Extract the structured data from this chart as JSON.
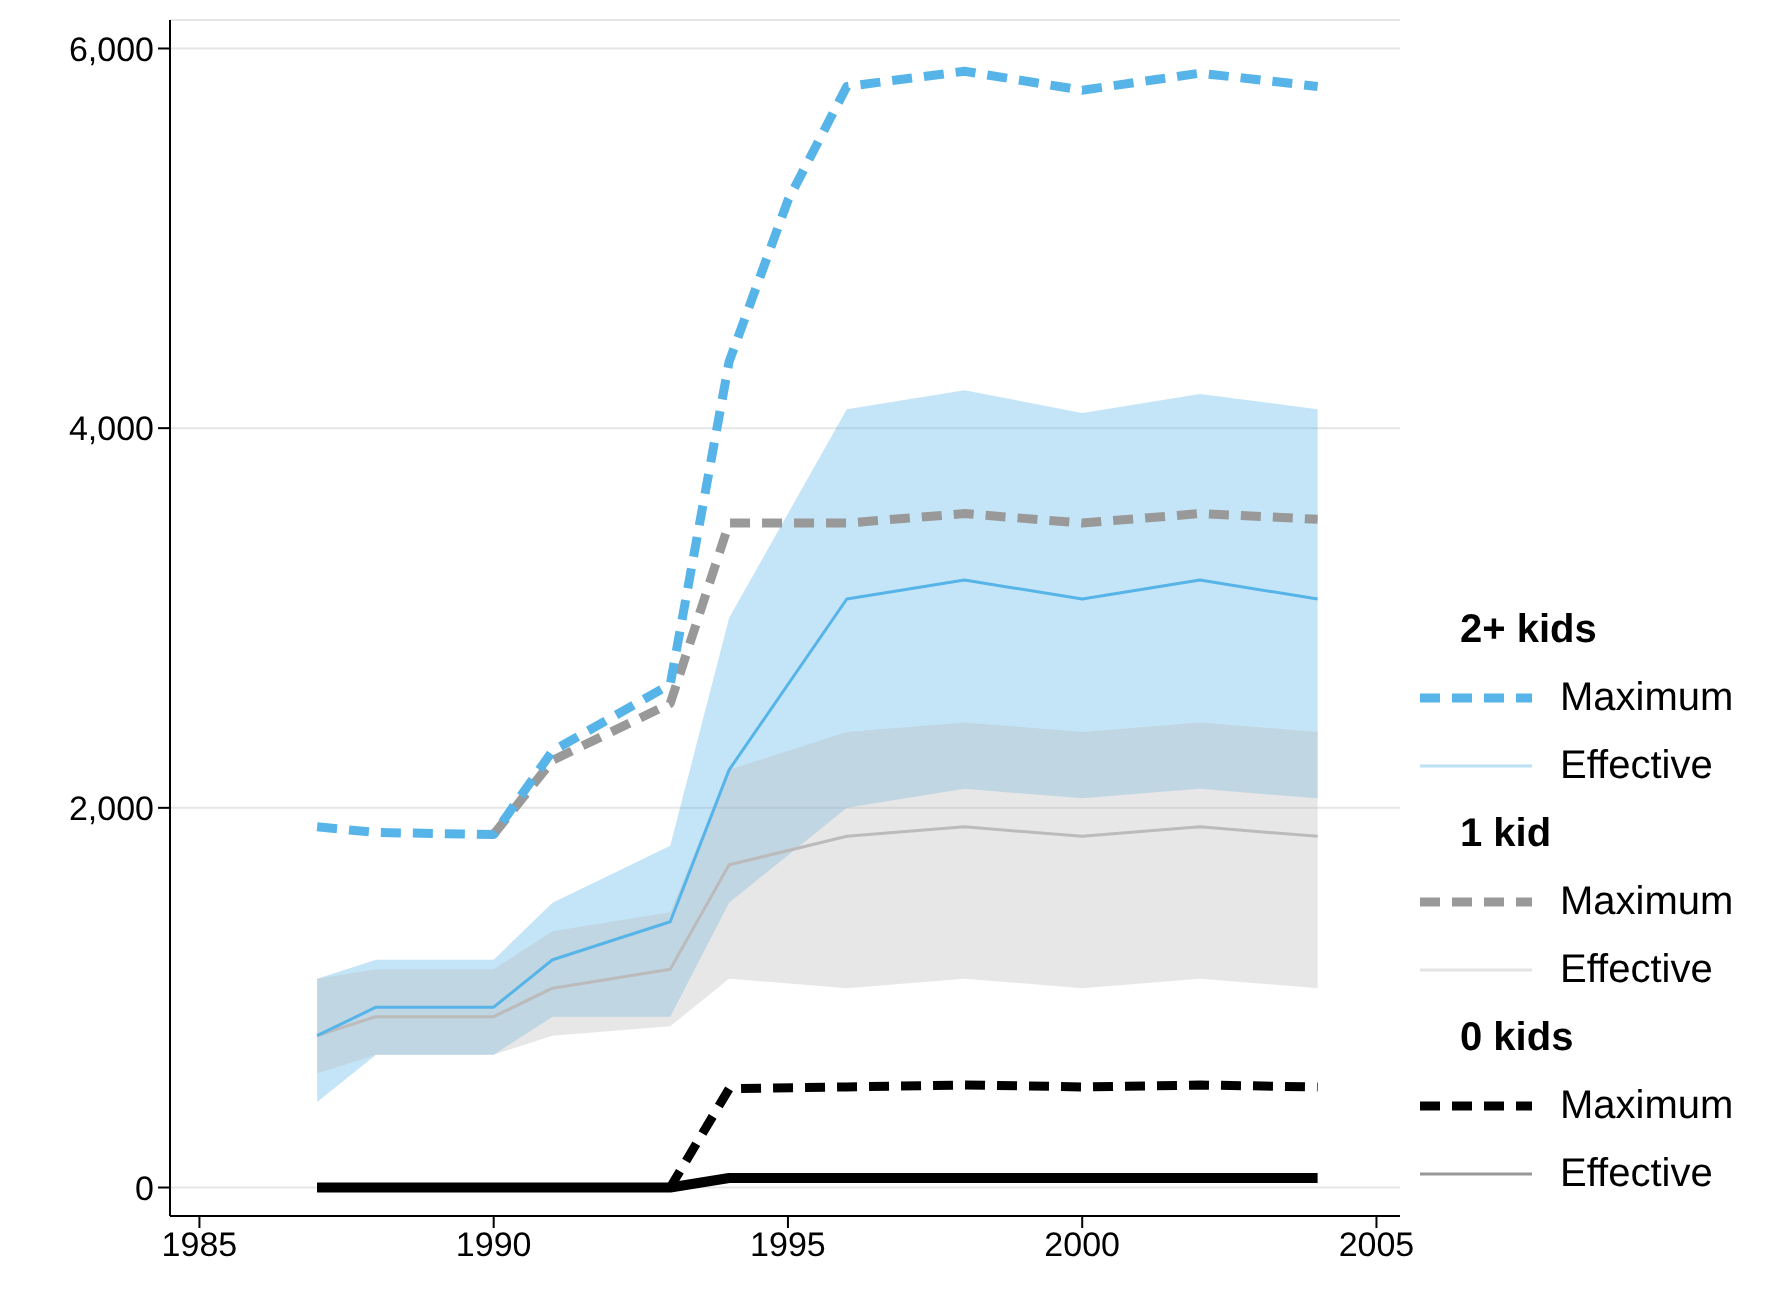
{
  "chart_data": {
    "type": "line",
    "xlim": [
      1984.5,
      2005.4
    ],
    "xticks": [
      {
        "value": 1985,
        "label": "1985"
      },
      {
        "value": 1990,
        "label": "1990"
      },
      {
        "value": 1995,
        "label": "1995"
      },
      {
        "value": 2000,
        "label": "2000"
      },
      {
        "value": 2005,
        "label": "2005"
      }
    ],
    "ylim": [
      -150,
      6150
    ],
    "yticks": [
      {
        "value": 0,
        "label": "0"
      },
      {
        "value": 2000,
        "label": "2,000"
      },
      {
        "value": 4000,
        "label": "4,000"
      },
      {
        "value": 6000,
        "label": "6,000"
      }
    ],
    "grid": "y",
    "legend": "right",
    "legend_title": [
      "2+ kids",
      "1 kid",
      "0 kids"
    ],
    "series": [
      {
        "name": "Maximum",
        "color": "#56b4e9",
        "line_style": "dashed",
        "x": [
          1987,
          1988,
          1990,
          1991,
          1993,
          1994,
          1995,
          1996,
          1998,
          2000,
          2002,
          2004
        ],
        "values": [
          1900,
          1870,
          1860,
          2300,
          2650,
          4350,
          5200,
          5800,
          5880,
          5780,
          5870,
          5800
        ]
      },
      {
        "name": "Effective",
        "color": "#56b4e9",
        "line_style": "solid",
        "x": [
          1987,
          1988,
          1990,
          1991,
          1993,
          1994,
          1996,
          1998,
          2000,
          2002,
          2004
        ],
        "values": [
          800,
          950,
          950,
          1200,
          1400,
          2200,
          3100,
          3200,
          3100,
          3200,
          3100
        ],
        "lower": [
          450,
          700,
          700,
          900,
          900,
          1500,
          2000,
          2100,
          2050,
          2100,
          2050
        ],
        "upper": [
          1100,
          1200,
          1200,
          1500,
          1800,
          3000,
          4100,
          4200,
          4080,
          4180,
          4100
        ]
      },
      {
        "name": "Maximum",
        "color": "#999999",
        "line_style": "dashed",
        "x": [
          1990,
          1991,
          1993,
          1994,
          1996,
          1998,
          2000,
          2002,
          2004
        ],
        "values": [
          1860,
          2250,
          2550,
          3500,
          3500,
          3550,
          3500,
          3550,
          3520
        ]
      },
      {
        "name": "Effective",
        "color": "#bbbbbb",
        "line_style": "solid",
        "x": [
          1987,
          1988,
          1990,
          1991,
          1993,
          1994,
          1996,
          1998,
          2000,
          2002,
          2004
        ],
        "values": [
          800,
          900,
          900,
          1050,
          1150,
          1700,
          1850,
          1900,
          1850,
          1900,
          1850
        ],
        "lower": [
          600,
          700,
          700,
          800,
          850,
          1100,
          1050,
          1100,
          1050,
          1100,
          1050
        ],
        "upper": [
          1100,
          1150,
          1150,
          1350,
          1450,
          2200,
          2400,
          2450,
          2400,
          2450,
          2400
        ]
      },
      {
        "name": "Maximum",
        "color": "#000000",
        "line_style": "dashed",
        "x": [
          1987,
          1990,
          1993,
          1994,
          1996,
          1998,
          2000,
          2002,
          2004
        ],
        "values": [
          0,
          0,
          0,
          520,
          530,
          540,
          530,
          540,
          530
        ]
      },
      {
        "name": "Effective",
        "color": "#000000",
        "line_style": "solid",
        "x": [
          1987,
          1990,
          1993,
          1994,
          1996,
          1998,
          2000,
          2002,
          2004
        ],
        "values": [
          0,
          0,
          0,
          50,
          50,
          50,
          50,
          50,
          50
        ]
      }
    ]
  }
}
